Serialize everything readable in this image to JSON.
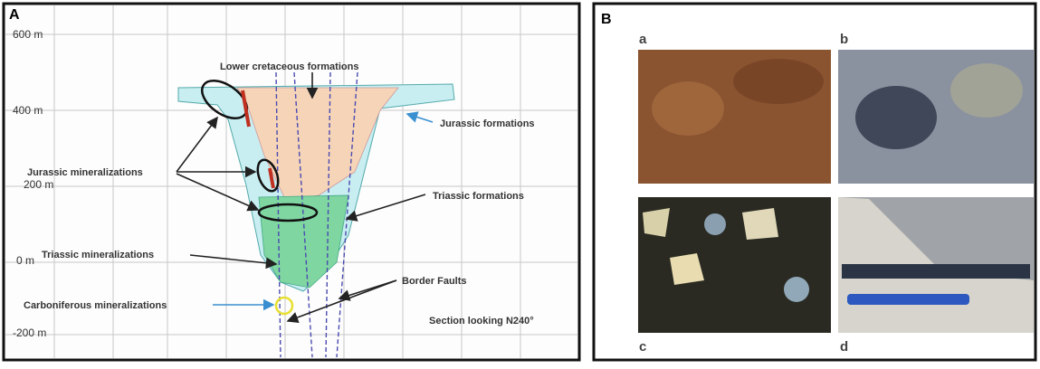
{
  "panel_a": {
    "label": "A",
    "elevations": [
      "600 m",
      "400 m",
      "200 m",
      "0 m",
      "-200 m"
    ],
    "annotations": {
      "lower_cretaceous": "Lower cretaceous formations",
      "jurassic_formations": "Jurassic formations",
      "jurassic_mineralizations": "Jurassic mineralizations",
      "triassic_formations": "Triassic formations",
      "triassic_mineralizations": "Triassic mineralizations",
      "border_faults": "Border Faults",
      "carboniferous_mineralizations": "Carboniferous mineralizations",
      "section": "Section looking N240°"
    }
  },
  "panel_b": {
    "label": "B",
    "photos": [
      "a",
      "b",
      "c",
      "d"
    ]
  }
}
